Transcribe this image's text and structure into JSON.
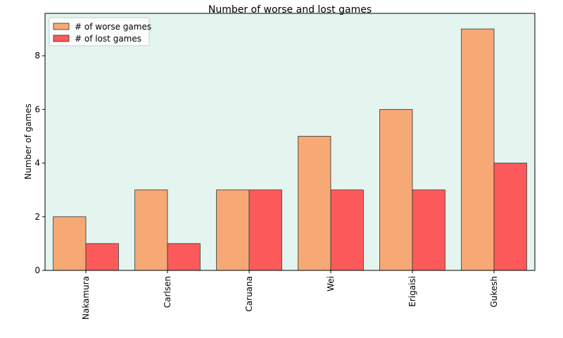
{
  "chart_data": {
    "type": "bar",
    "title": "Number of worse and lost games",
    "ylabel": "Number of games",
    "categories": [
      "Nakamura",
      "Carlsen",
      "Caruana",
      "Wei",
      "Erigaisi",
      "Gukesh"
    ],
    "series": [
      {
        "name": "# of worse games",
        "color": "#f6a875",
        "values": [
          2,
          3,
          3,
          5,
          6,
          9
        ]
      },
      {
        "name": "# of lost games",
        "color": "#fc5a5a",
        "values": [
          1,
          1,
          3,
          3,
          3,
          4
        ]
      }
    ],
    "ylim": [
      0,
      9.58
    ],
    "yticks": [
      0,
      2,
      4,
      6,
      8
    ],
    "legend": "upper left",
    "background": "#e4f5ef"
  }
}
